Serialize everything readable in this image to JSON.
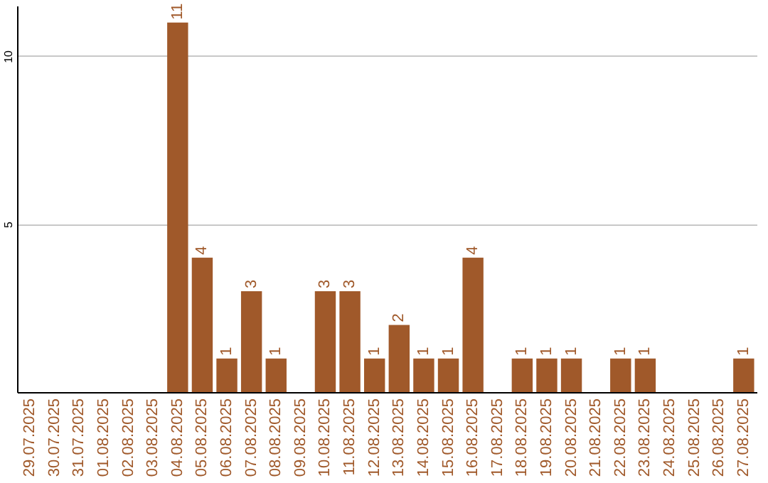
{
  "chart_data": {
    "type": "bar",
    "categories": [
      "29.07.2025",
      "30.07.2025",
      "31.07.2025",
      "01.08.2025",
      "02.08.2025",
      "03.08.2025",
      "04.08.2025",
      "05.08.2025",
      "06.08.2025",
      "07.08.2025",
      "08.08.2025",
      "09.08.2025",
      "10.08.2025",
      "11.08.2025",
      "12.08.2025",
      "13.08.2025",
      "14.08.2025",
      "15.08.2025",
      "16.08.2025",
      "17.08.2025",
      "18.08.2025",
      "19.08.2025",
      "20.08.2025",
      "21.08.2025",
      "22.08.2025",
      "23.08.2025",
      "24.08.2025",
      "25.08.2025",
      "26.08.2025",
      "27.08.2025"
    ],
    "values": [
      null,
      null,
      null,
      null,
      null,
      null,
      11,
      4,
      1,
      3,
      1,
      null,
      3,
      3,
      1,
      2,
      1,
      1,
      4,
      null,
      1,
      1,
      1,
      null,
      1,
      1,
      null,
      null,
      null,
      1
    ],
    "color": "#a0592a",
    "ylim": [
      0,
      11.5
    ],
    "yticks": [
      5,
      10
    ],
    "grid": "y",
    "data_labels": true
  }
}
